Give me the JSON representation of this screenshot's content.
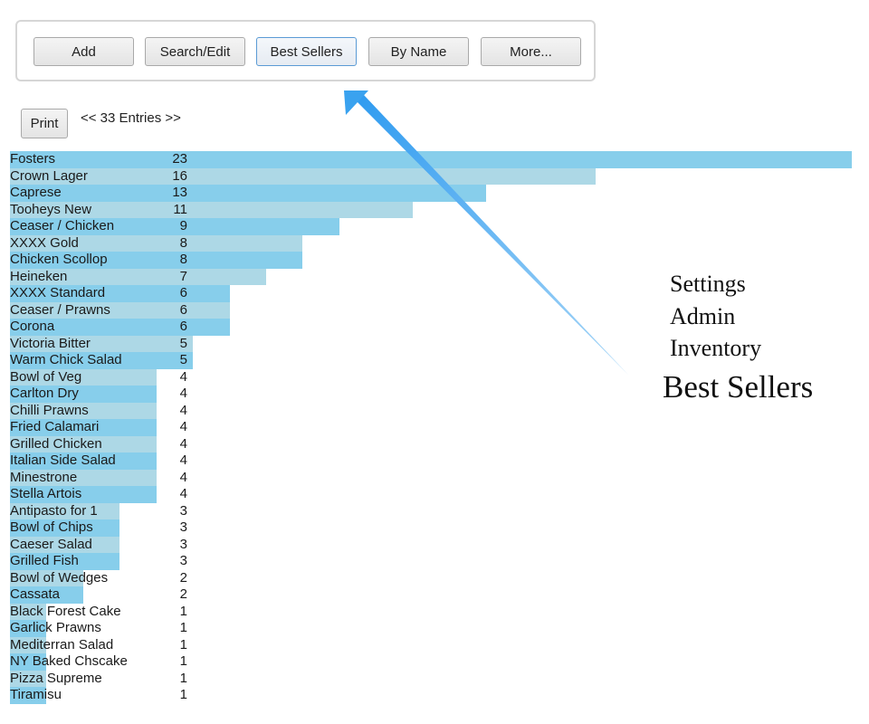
{
  "toolbar": {
    "buttons": [
      {
        "label": "Add"
      },
      {
        "label": "Search/Edit"
      },
      {
        "label": "Best Sellers"
      },
      {
        "label": "By Name"
      },
      {
        "label": "More..."
      }
    ],
    "active_button": "Best Sellers"
  },
  "report": {
    "print_label": "Print",
    "entries_label": "<< 33 Entries >>"
  },
  "best_sellers": {
    "max_value": 23,
    "items": [
      {
        "name": "Fosters",
        "count": 23
      },
      {
        "name": "Crown Lager",
        "count": 16
      },
      {
        "name": "Caprese",
        "count": 13
      },
      {
        "name": "Tooheys New",
        "count": 11
      },
      {
        "name": "Ceaser / Chicken",
        "count": 9
      },
      {
        "name": "XXXX Gold",
        "count": 8
      },
      {
        "name": "Chicken Scollop",
        "count": 8
      },
      {
        "name": "Heineken",
        "count": 7
      },
      {
        "name": "XXXX Standard",
        "count": 6
      },
      {
        "name": "Ceaser / Prawns",
        "count": 6
      },
      {
        "name": "Corona",
        "count": 6
      },
      {
        "name": "Victoria Bitter",
        "count": 5
      },
      {
        "name": "Warm Chick Salad",
        "count": 5
      },
      {
        "name": "Bowl of Veg",
        "count": 4
      },
      {
        "name": "Carlton Dry",
        "count": 4
      },
      {
        "name": "Chilli Prawns",
        "count": 4
      },
      {
        "name": "Fried Calamari",
        "count": 4
      },
      {
        "name": "Grilled Chicken",
        "count": 4
      },
      {
        "name": "Italian Side Salad",
        "count": 4
      },
      {
        "name": "Minestrone",
        "count": 4
      },
      {
        "name": "Stella Artois",
        "count": 4
      },
      {
        "name": "Antipasto for 1",
        "count": 3
      },
      {
        "name": "Bowl of Chips",
        "count": 3
      },
      {
        "name": "Caeser Salad",
        "count": 3
      },
      {
        "name": "Grilled Fish",
        "count": 3
      },
      {
        "name": "Bowl of Wedges",
        "count": 2
      },
      {
        "name": "Cassata",
        "count": 2
      },
      {
        "name": "Black Forest Cake",
        "count": 1
      },
      {
        "name": "Garlick Prawns",
        "count": 1
      },
      {
        "name": "Mediterran Salad",
        "count": 1
      },
      {
        "name": "NY Baked Chscake",
        "count": 1
      },
      {
        "name": "Pizza Supreme",
        "count": 1
      },
      {
        "name": "Tiramisu",
        "count": 1
      }
    ]
  },
  "overlay_menu": {
    "items": [
      "Settings",
      "Admin",
      "Inventory"
    ],
    "highlight": "Best Sellers"
  },
  "colors": {
    "bar_dark": "#87ceeb",
    "bar_light": "#add8e6",
    "arrow": "#4aa8ef"
  }
}
